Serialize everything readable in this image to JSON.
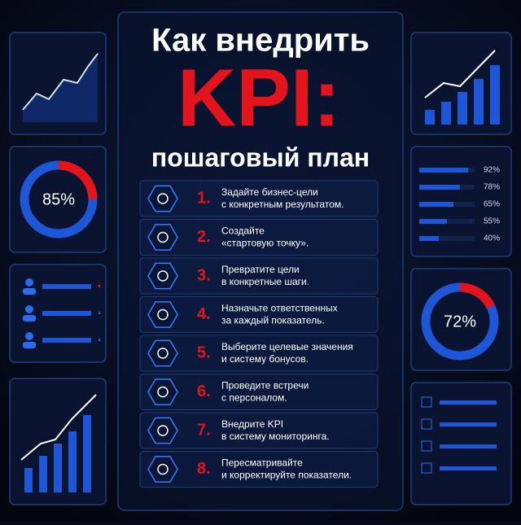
{
  "header": {
    "line1": "Как внедрить",
    "line2": "KPI:",
    "line3": "пошаговый план"
  },
  "steps": [
    {
      "number": "1.",
      "lines": [
        "Задайте бизнес-цели",
        "с конкретным результатом."
      ]
    },
    {
      "number": "2.",
      "lines": [
        "Создайте",
        "«стартовую точку»."
      ]
    },
    {
      "number": "3.",
      "lines": [
        "Превратите цели",
        "в конкретные шаги."
      ]
    },
    {
      "number": "4.",
      "lines": [
        "Назначьте ответственных",
        "за каждый показатель."
      ]
    },
    {
      "number": "5.",
      "lines": [
        "Выберите целевые значения",
        "и систему бонусов."
      ]
    },
    {
      "number": "6.",
      "lines": [
        "Проведите встречи",
        "с персоналом."
      ]
    },
    {
      "number": "7.",
      "lines": [
        "Внедрите KPI",
        "в систему мониторинга."
      ]
    },
    {
      "number": "8.",
      "lines": [
        "Пересматривайте",
        "и корректируйте показатели."
      ]
    }
  ],
  "left_donut": "85%",
  "right_donut": "72%",
  "right_bars": [
    "92%",
    "78%",
    "65%",
    "55%",
    "40%"
  ]
}
